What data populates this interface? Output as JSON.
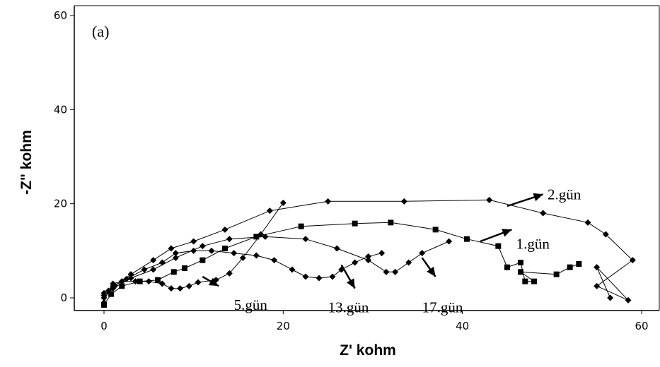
{
  "chart_data": {
    "type": "scatter",
    "panel_label": "(a)",
    "xlabel": "Z' kohm",
    "ylabel": "-Z\" kohm",
    "xlim": [
      -1,
      61
    ],
    "ylim": [
      -1.5,
      61
    ],
    "xticks": [
      "0",
      "20",
      "40",
      "60"
    ],
    "yticks": [
      "0",
      "20",
      "40",
      "60"
    ],
    "grid": false,
    "series": [
      {
        "name": "1.gün",
        "marker": "square",
        "points": [
          [
            0,
            -1.5
          ],
          [
            0.8,
            0.8
          ],
          [
            2,
            2.5
          ],
          [
            4,
            3.5
          ],
          [
            6,
            3.8
          ],
          [
            7.8,
            5.5
          ],
          [
            9,
            6.3
          ],
          [
            11,
            8
          ],
          [
            13.5,
            10.5
          ],
          [
            17,
            13
          ],
          [
            22,
            15.2
          ],
          [
            28,
            15.8
          ],
          [
            32,
            16
          ],
          [
            37,
            14.5
          ],
          [
            40.5,
            12.5
          ],
          [
            44,
            11
          ],
          [
            45,
            6.5
          ],
          [
            46.5,
            7.5
          ],
          [
            47,
            3.5
          ],
          [
            48,
            3.5
          ],
          [
            46.5,
            5.5
          ],
          [
            50.5,
            5
          ],
          [
            52,
            6.5
          ],
          [
            53,
            7.2
          ]
        ]
      },
      {
        "name": "2.gün",
        "marker": "diamond",
        "points": [
          [
            0,
            0.5
          ],
          [
            1.2,
            2.5
          ],
          [
            3,
            5
          ],
          [
            5.5,
            8
          ],
          [
            7.5,
            10.5
          ],
          [
            10,
            12
          ],
          [
            13.5,
            14.5
          ],
          [
            18.5,
            18.5
          ],
          [
            25,
            20.5
          ],
          [
            33.5,
            20.5
          ],
          [
            43,
            20.8
          ],
          [
            49,
            18
          ],
          [
            54,
            16
          ],
          [
            56,
            13.5
          ],
          [
            59,
            8
          ],
          [
            55,
            2.5
          ],
          [
            58.5,
            -0.5
          ],
          [
            55,
            6.5
          ],
          [
            56.5,
            0
          ]
        ]
      },
      {
        "name": "5.gün",
        "marker": "diamond",
        "points": [
          [
            0,
            -1
          ],
          [
            0.5,
            1.5
          ],
          [
            1,
            3
          ],
          [
            2,
            3.5
          ],
          [
            3.5,
            3.5
          ],
          [
            5,
            3.5
          ],
          [
            6.5,
            3
          ],
          [
            7.5,
            2
          ],
          [
            8.5,
            2
          ],
          [
            9.5,
            2.5
          ],
          [
            10.5,
            3.3
          ],
          [
            12.5,
            3.8
          ],
          [
            14,
            5.2
          ],
          [
            15.5,
            8.5
          ],
          [
            17.5,
            13.5
          ],
          [
            20,
            20.2
          ]
        ]
      },
      {
        "name": "13.gün",
        "marker": "diamond",
        "points": [
          [
            0,
            1
          ],
          [
            1,
            2.5
          ],
          [
            2.5,
            4
          ],
          [
            4.5,
            6
          ],
          [
            6.5,
            7.5
          ],
          [
            8,
            9.5
          ],
          [
            10,
            10
          ],
          [
            12,
            10
          ],
          [
            14.5,
            9.5
          ],
          [
            17,
            9
          ],
          [
            19,
            8
          ],
          [
            21,
            6
          ],
          [
            22.5,
            4.5
          ],
          [
            24,
            4.2
          ],
          [
            25.5,
            4.5
          ],
          [
            26.5,
            6
          ],
          [
            28,
            7.5
          ],
          [
            29.5,
            8.8
          ],
          [
            31,
            9.5
          ]
        ]
      },
      {
        "name": "17.gün",
        "marker": "diamond",
        "points": [
          [
            0,
            0
          ],
          [
            1,
            2
          ],
          [
            3,
            4.2
          ],
          [
            5.5,
            6
          ],
          [
            8,
            8.5
          ],
          [
            11,
            11
          ],
          [
            14,
            12.5
          ],
          [
            18,
            13
          ],
          [
            22.5,
            12.5
          ],
          [
            26,
            10.5
          ],
          [
            29.5,
            8
          ],
          [
            31.5,
            5.5
          ],
          [
            32.5,
            5.5
          ],
          [
            34,
            7.5
          ],
          [
            35.5,
            9.5
          ],
          [
            38.5,
            12
          ]
        ]
      }
    ],
    "annotations": [
      {
        "text": "2.gün",
        "x": 49.5,
        "y": 22,
        "arrow_from": [
          45,
          19.5
        ],
        "arrow_to": [
          49,
          22
        ]
      },
      {
        "text": "1.gün",
        "x": 46,
        "y": 11.5,
        "arrow_from": [
          42,
          12
        ],
        "arrow_to": [
          45.5,
          14.5
        ]
      },
      {
        "text": "5.gün",
        "x": 14.5,
        "y": -1.5,
        "arrow_from": [
          11,
          4.5
        ],
        "arrow_to": [
          12.8,
          2.5
        ]
      },
      {
        "text": "13.gün",
        "x": 25,
        "y": -2,
        "arrow_from": [
          26.5,
          7
        ],
        "arrow_to": [
          28,
          2
        ]
      },
      {
        "text": "17.gün",
        "x": 35.5,
        "y": -2,
        "arrow_from": [
          35.5,
          8.5
        ],
        "arrow_to": [
          37,
          4.5
        ]
      }
    ]
  }
}
